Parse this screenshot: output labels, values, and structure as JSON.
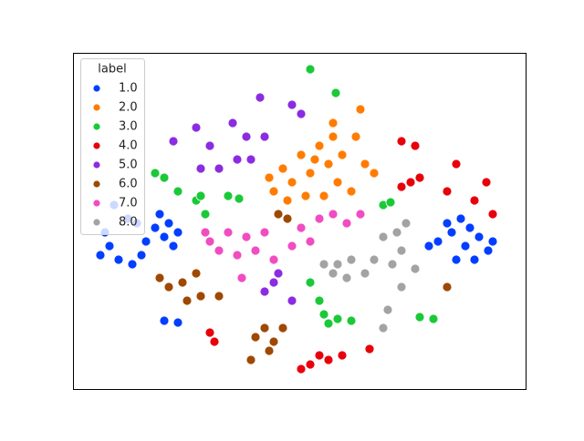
{
  "chart_data": {
    "type": "scatter",
    "legend_title": "label",
    "legend": "upper left",
    "xlim": [
      0,
      496
    ],
    "ylim": [
      0,
      369
    ],
    "series": [
      {
        "name": "1.0",
        "color": "#023eff",
        "x": [
          90,
          80,
          100,
          70,
          95,
          110,
          60,
          40,
          30,
          50,
          75,
          105,
          45,
          35,
          65,
          115,
          400,
          415,
          430,
          445,
          420,
          440,
          410,
          455,
          390,
          425,
          460,
          435,
          100,
          115
        ],
        "y": [
          177,
          162,
          167,
          182,
          192,
          157,
          187,
          157,
          147,
          142,
          147,
          182,
          202,
          172,
          137,
          172,
          162,
          172,
          157,
          167,
          142,
          142,
          182,
          152,
          157,
          187,
          162,
          177,
          75,
          73
        ]
      },
      {
        "name": "2.0",
        "color": "#ff7c00",
        "x": [
          220,
          240,
          260,
          280,
          270,
          250,
          230,
          215,
          290,
          275,
          255,
          235,
          265,
          295,
          285,
          315,
          310,
          320,
          330,
          305,
          285
        ],
        "y": [
          217,
          227,
          237,
          247,
          267,
          257,
          242,
          232,
          227,
          212,
          212,
          207,
          252,
          257,
          277,
          307,
          277,
          247,
          237,
          217,
          292
        ]
      },
      {
        "name": "3.0",
        "color": "#1ac938",
        "x": [
          90,
          100,
          135,
          145,
          140,
          170,
          182,
          340,
          348,
          260,
          275,
          290,
          305,
          280,
          380,
          395,
          260,
          288,
          115,
          270
        ],
        "y": [
          237,
          232,
          207,
          192,
          212,
          212,
          209,
          202,
          205,
          117,
          82,
          77,
          75,
          72,
          79,
          77,
          351,
          325,
          217,
          97
        ]
      },
      {
        "name": "4.0",
        "color": "#e8000b",
        "x": [
          360,
          375,
          370,
          360,
          380,
          410,
          420,
          460,
          440,
          155,
          150,
          260,
          250,
          280,
          295,
          270,
          325,
          453
        ],
        "y": [
          272,
          267,
          227,
          222,
          232,
          217,
          247,
          192,
          207,
          52,
          62,
          27,
          22,
          32,
          37,
          37,
          44,
          227
        ]
      },
      {
        "name": "5.0",
        "color": "#8b2be2",
        "x": [
          175,
          190,
          210,
          195,
          180,
          140,
          150,
          110,
          135,
          240,
          250,
          205,
          220,
          210,
          225,
          240,
          160
        ],
        "y": [
          292,
          277,
          277,
          252,
          252,
          242,
          267,
          272,
          287,
          312,
          302,
          320,
          117,
          107,
          127,
          97,
          242
        ]
      },
      {
        "name": "6.0",
        "color": "#9f4800",
        "x": [
          120,
          105,
          135,
          140,
          160,
          95,
          210,
          200,
          220,
          230,
          215,
          195,
          225,
          235,
          410,
          125
        ],
        "y": [
          117,
          112,
          127,
          102,
          102,
          122,
          67,
          57,
          52,
          67,
          42,
          32,
          192,
          187,
          112,
          97
        ]
      },
      {
        "name": "7.0",
        "color": "#f14cc1",
        "x": [
          150,
          170,
          190,
          200,
          180,
          160,
          210,
          240,
          250,
          270,
          285,
          300,
          260,
          220,
          315,
          185,
          145
        ],
        "y": [
          162,
          172,
          167,
          152,
          147,
          152,
          172,
          157,
          177,
          187,
          192,
          182,
          162,
          142,
          192,
          122,
          172
        ]
      },
      {
        "name": "8.0",
        "color": "#a3a3a3",
        "x": [
          290,
          305,
          320,
          300,
          285,
          330,
          340,
          355,
          360,
          350,
          375,
          360,
          345,
          340,
          275,
          365
        ],
        "y": [
          137,
          142,
          127,
          122,
          127,
          142,
          167,
          172,
          152,
          137,
          132,
          112,
          87,
          67,
          137,
          182
        ]
      }
    ]
  }
}
